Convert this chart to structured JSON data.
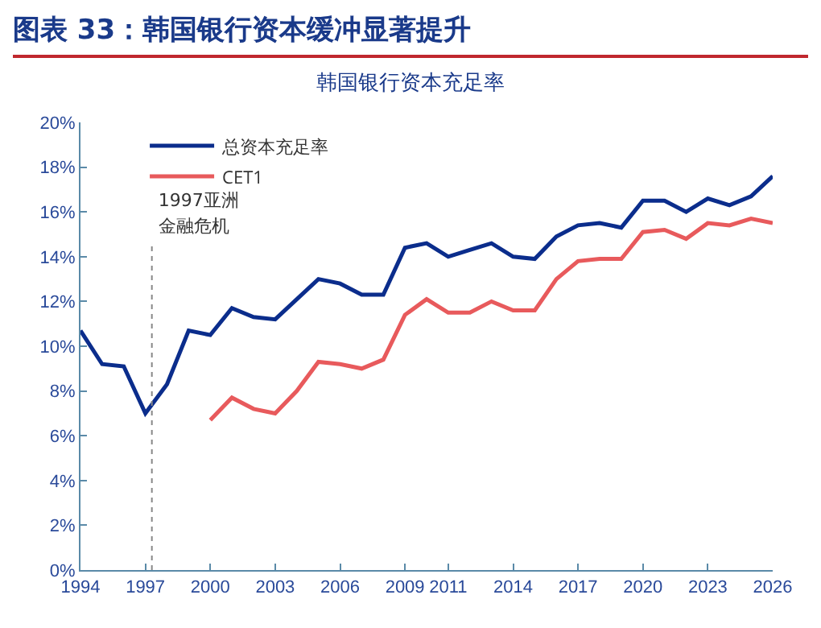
{
  "chart_data": {
    "type": "line",
    "title": "图表 33：韩国银行资本缓冲显著提升",
    "subtitle": "韩国银行资本充足率",
    "x": [
      1994,
      1995,
      1996,
      1997,
      1998,
      1999,
      2000,
      2001,
      2002,
      2003,
      2004,
      2005,
      2006,
      2007,
      2008,
      2009,
      2010,
      2011,
      2012,
      2013,
      2014,
      2015,
      2016,
      2017,
      2018,
      2019,
      2020,
      2021,
      2022,
      2023,
      2024,
      2025,
      2026
    ],
    "series": [
      {
        "name": "总资本充足率",
        "color": "#0b2d8c",
        "values": [
          10.7,
          9.2,
          9.1,
          7.0,
          8.3,
          10.7,
          10.5,
          11.7,
          11.3,
          11.2,
          12.1,
          13.0,
          12.8,
          12.3,
          12.3,
          14.4,
          14.6,
          14.0,
          14.3,
          14.6,
          14.0,
          13.9,
          14.9,
          15.4,
          15.5,
          15.3,
          16.5,
          16.5,
          16.0,
          16.6,
          16.3,
          16.7,
          17.6
        ]
      },
      {
        "name": "CET1",
        "color": "#e85a5c",
        "values": [
          null,
          null,
          null,
          null,
          null,
          null,
          6.7,
          7.7,
          7.2,
          7.0,
          8.0,
          9.3,
          9.2,
          9.0,
          9.4,
          11.4,
          12.1,
          11.5,
          11.5,
          12.0,
          11.6,
          11.6,
          13.0,
          13.8,
          13.9,
          13.9,
          15.1,
          15.2,
          14.8,
          15.5,
          15.4,
          15.7,
          15.5
        ]
      }
    ],
    "xlim": [
      1994,
      2026
    ],
    "xticks": [
      1994,
      1997,
      2000,
      2003,
      2006,
      2009,
      2011,
      2014,
      2017,
      2020,
      2023,
      2026
    ],
    "ylim": [
      0,
      20
    ],
    "yticks": [
      {
        "value": 0,
        "label": "0%"
      },
      {
        "value": 2,
        "label": "2%"
      },
      {
        "value": 4,
        "label": "4%"
      },
      {
        "value": 6,
        "label": "6%"
      },
      {
        "value": 8,
        "label": "8%"
      },
      {
        "value": 10,
        "label": "10%"
      },
      {
        "value": 12,
        "label": "12%"
      },
      {
        "value": 14,
        "label": "14%"
      },
      {
        "value": 16,
        "label": "16%"
      },
      {
        "value": 18,
        "label": "18%"
      },
      {
        "value": 20,
        "label": "20%"
      }
    ],
    "ref_lines": [
      {
        "axis": "x",
        "value": 1997.3,
        "label": "1997亚洲金融危机",
        "color": "#888888",
        "line_style": "dotted"
      }
    ],
    "grid": false,
    "legend": "top",
    "marker": "none",
    "line_style": "solid"
  }
}
